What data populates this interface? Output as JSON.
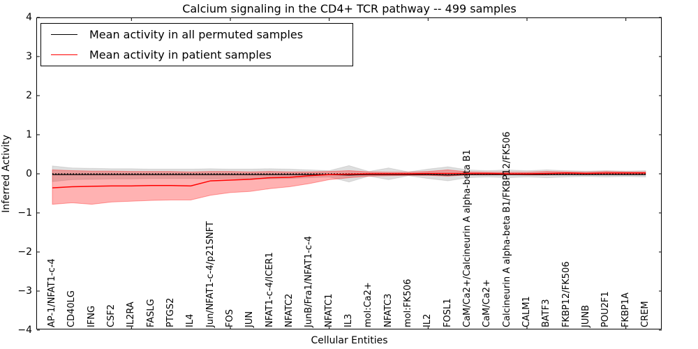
{
  "figure": {
    "title": "Calcium signaling in the CD4+ TCR pathway -- 499 samples",
    "xlabel": "Cellular Entities",
    "ylabel": "Inferred Activity"
  },
  "legend": {
    "position": "upper left",
    "items": [
      {
        "label": "Mean activity in all permuted samples",
        "color": "#000000"
      },
      {
        "label": "Mean activity in patient samples",
        "color": "#ff0000"
      }
    ]
  },
  "chart_data": {
    "type": "line",
    "title": "Calcium signaling in the CD4+ TCR pathway -- 499 samples",
    "xlabel": "Cellular Entities",
    "ylabel": "Inferred Activity",
    "ylim": [
      -4,
      4
    ],
    "yticks": [
      -4,
      -3,
      -2,
      -1,
      0,
      1,
      2,
      3,
      4
    ],
    "ytick_labels": [
      "−4",
      "−3",
      "−2",
      "−1",
      "0",
      "1",
      "2",
      "3",
      "4"
    ],
    "grid": false,
    "zero_line": {
      "style": "dotted",
      "color": "#000000",
      "y": 0
    },
    "legend_position": "upper left",
    "categories": [
      "AP-1/NFAT1-c-4",
      "CD40LG",
      "IFNG",
      "CSF2",
      "IL2RA",
      "FASLG",
      "PTGS2",
      "IL4",
      "Jun/NFAT1-c-4/p21SNFT",
      "FOS",
      "JUN",
      "NFAT1-c-4/ICER1",
      "NFATC2",
      "JunB/Fra1/NFAT1-c-4",
      "NFATC1",
      "IL3",
      "mol:Ca2+",
      "NFATC3",
      "mol:FK506",
      "IL2",
      "FOSL1",
      "CaM/Ca2+/Calcineurin A alpha-beta B1",
      "CaM/Ca2+",
      "Calcineurin A alpha-beta B1/FKBP12/FK506",
      "CALM1",
      "BATF3",
      "FKBP12/FK506",
      "JUNB",
      "POU2F1",
      "FKBP1A",
      "CREM"
    ],
    "series": [
      {
        "name": "Mean activity in all permuted samples",
        "color": "#000000",
        "line_width": 1.3,
        "values": [
          -0.02,
          -0.02,
          -0.02,
          -0.02,
          -0.02,
          -0.02,
          -0.02,
          -0.02,
          -0.02,
          -0.02,
          -0.02,
          -0.02,
          -0.02,
          -0.02,
          -0.02,
          -0.03,
          -0.02,
          -0.02,
          -0.02,
          -0.02,
          -0.03,
          -0.02,
          -0.02,
          -0.02,
          -0.02,
          -0.02,
          -0.02,
          -0.02,
          -0.02,
          -0.02,
          -0.02
        ],
        "band": {
          "fill": "rgba(0,0,0,0.13)",
          "upper": [
            0.2,
            0.15,
            0.14,
            0.13,
            0.13,
            0.12,
            0.12,
            0.12,
            0.13,
            0.12,
            0.12,
            0.13,
            0.12,
            0.1,
            0.08,
            0.21,
            0.06,
            0.15,
            0.05,
            0.12,
            0.18,
            0.1,
            0.08,
            0.1,
            0.08,
            0.1,
            0.08,
            0.07,
            0.08,
            0.07,
            0.08
          ],
          "lower": [
            -0.2,
            -0.15,
            -0.14,
            -0.13,
            -0.13,
            -0.12,
            -0.12,
            -0.12,
            -0.13,
            -0.12,
            -0.12,
            -0.13,
            -0.12,
            -0.1,
            -0.08,
            -0.21,
            -0.06,
            -0.15,
            -0.05,
            -0.12,
            -0.18,
            -0.1,
            -0.08,
            -0.1,
            -0.08,
            -0.1,
            -0.08,
            -0.07,
            -0.08,
            -0.07,
            -0.08
          ]
        }
      },
      {
        "name": "Mean activity in patient samples",
        "color": "#ff0000",
        "line_width": 1.5,
        "values": [
          -0.36,
          -0.33,
          -0.32,
          -0.31,
          -0.31,
          -0.3,
          -0.3,
          -0.31,
          -0.18,
          -0.16,
          -0.14,
          -0.1,
          -0.09,
          -0.05,
          -0.02,
          -0.01,
          0.0,
          0.0,
          0.0,
          0.01,
          0.01,
          0.01,
          0.01,
          0.0,
          0.0,
          0.01,
          0.02,
          0.01,
          0.02,
          0.02,
          0.02
        ],
        "band": {
          "fill": "rgba(255,0,0,0.30)",
          "upper": [
            0.1,
            0.08,
            0.07,
            0.07,
            0.06,
            0.06,
            0.06,
            0.05,
            0.06,
            0.06,
            0.05,
            0.06,
            0.05,
            0.05,
            0.06,
            0.08,
            0.05,
            0.04,
            0.04,
            0.06,
            0.1,
            0.05,
            0.04,
            0.04,
            0.04,
            0.06,
            0.05,
            0.04,
            0.06,
            0.05,
            0.05
          ],
          "lower": [
            -0.78,
            -0.74,
            -0.78,
            -0.72,
            -0.7,
            -0.68,
            -0.67,
            -0.67,
            -0.55,
            -0.48,
            -0.45,
            -0.38,
            -0.33,
            -0.25,
            -0.15,
            -0.1,
            -0.06,
            -0.05,
            -0.04,
            -0.04,
            -0.06,
            -0.03,
            -0.03,
            -0.02,
            -0.03,
            -0.03,
            -0.02,
            -0.02,
            -0.02,
            -0.02,
            -0.02
          ]
        }
      }
    ]
  }
}
